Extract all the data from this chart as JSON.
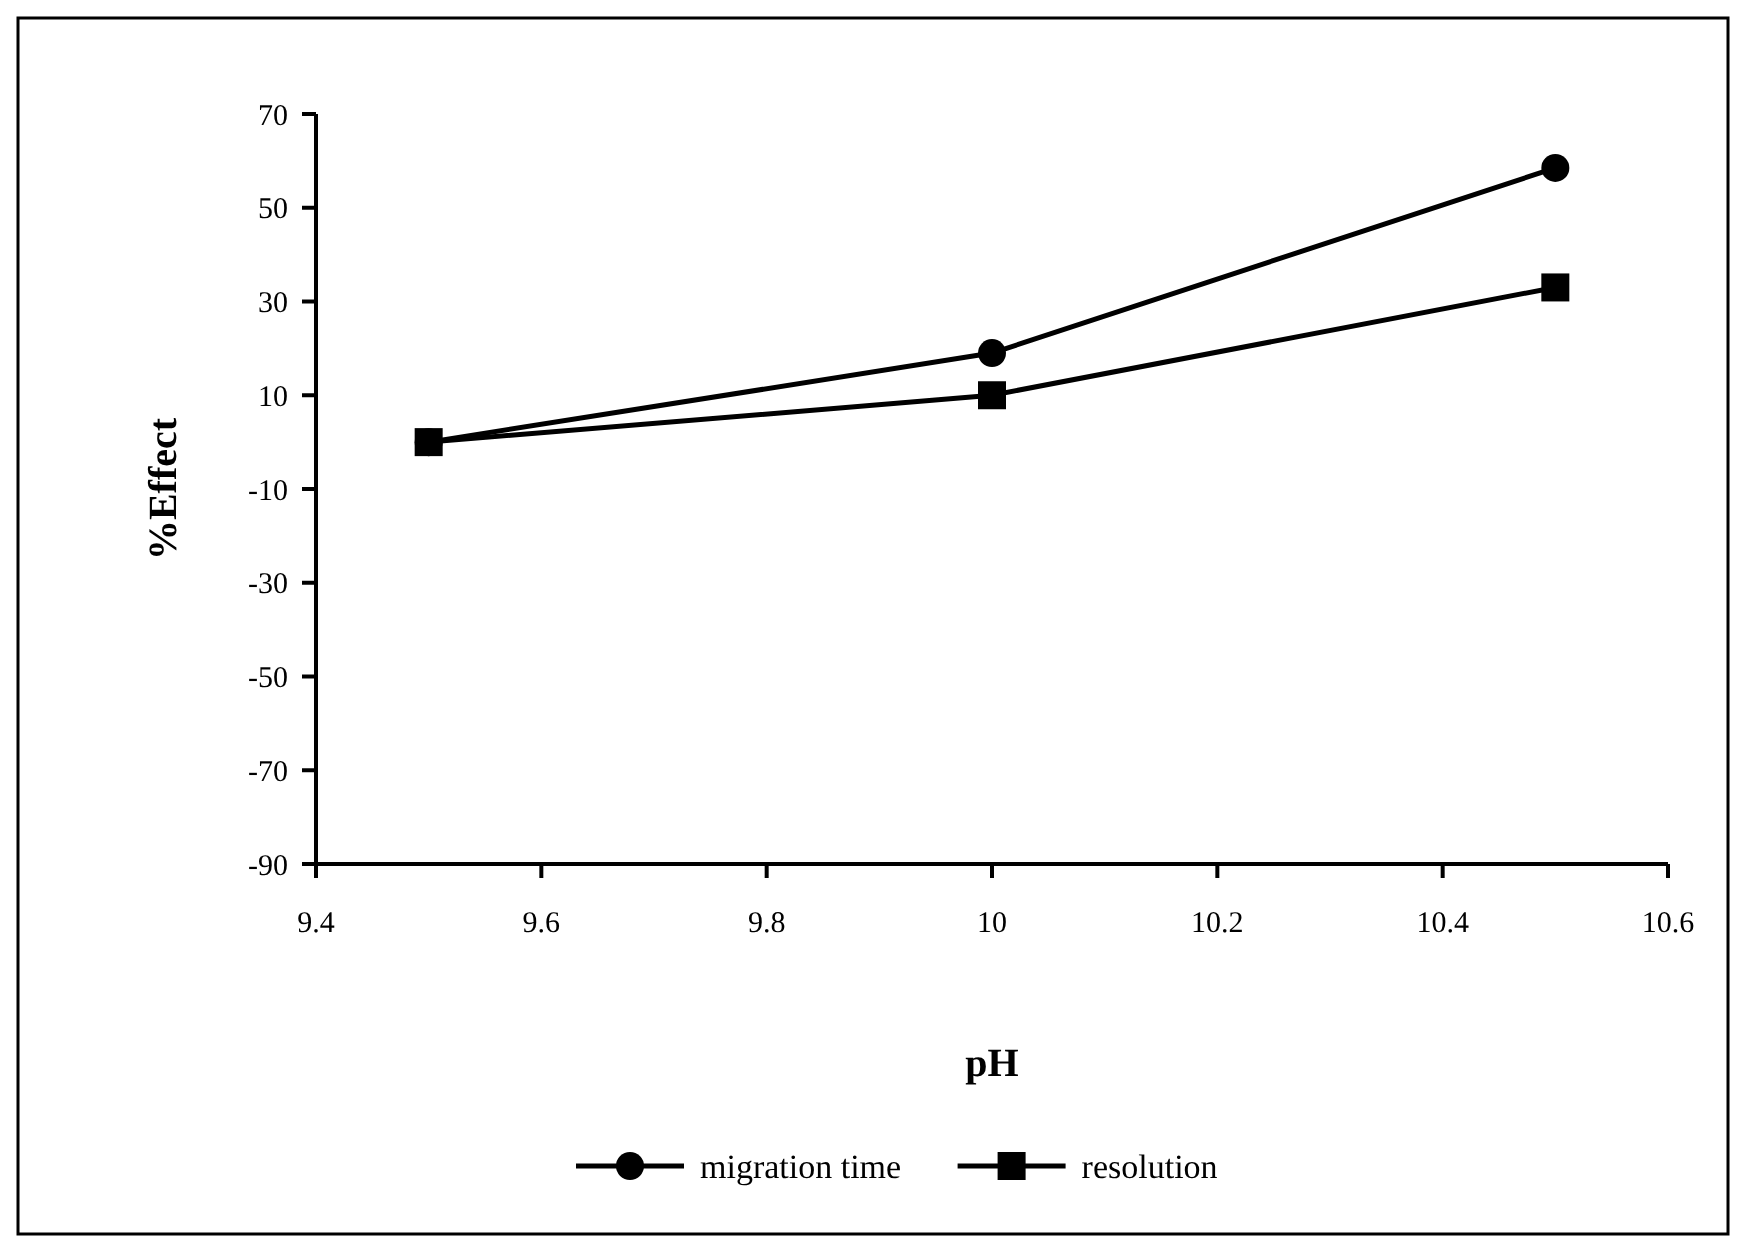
{
  "chart_data": {
    "type": "line",
    "xlabel": "pH",
    "ylabel": "%Effect",
    "x": [
      9.5,
      10,
      10.5
    ],
    "series": [
      {
        "name": "migration time",
        "color": "#000000",
        "marker": "circle",
        "values": [
          0,
          19,
          58.5
        ]
      },
      {
        "name": "resolution",
        "color": "#000000",
        "marker": "square",
        "values": [
          0,
          10,
          33
        ]
      }
    ],
    "xlim": [
      9.4,
      10.6
    ],
    "xticks": [
      9.4,
      9.6,
      9.8,
      10,
      10.2,
      10.4,
      10.6
    ],
    "ylim": [
      -90,
      70
    ],
    "yticks": [
      -90,
      -70,
      -50,
      -30,
      -10,
      10,
      30,
      50,
      70
    ],
    "grid": false,
    "legend": "bottom",
    "line_style": "solid"
  }
}
